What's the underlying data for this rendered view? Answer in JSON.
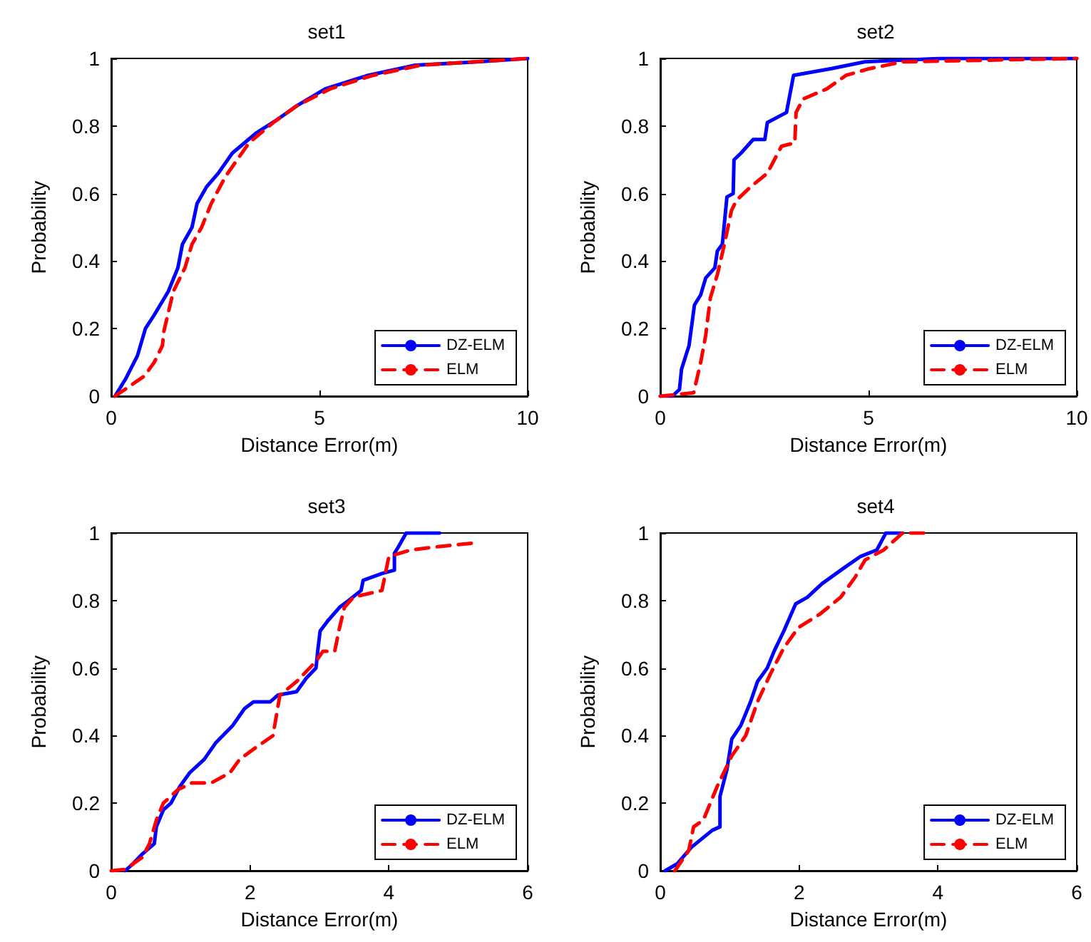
{
  "chart_data": [
    {
      "type": "line",
      "title": "set1",
      "xlabel": "Distance Error(m)",
      "ylabel": "Probability",
      "xlim": [
        0,
        10
      ],
      "xticks": [
        0,
        5,
        10
      ],
      "ylim": [
        0,
        1
      ],
      "yticks": [
        0,
        0.2,
        0.4,
        0.6,
        0.8,
        1
      ],
      "grid": false,
      "legend": "bottom right",
      "series": [
        {
          "name": "DZ-ELM",
          "color": "#0000ff",
          "line_style": "solid",
          "x": [
            0.09,
            0.34,
            0.63,
            0.82,
            1.03,
            1.37,
            1.6,
            1.71,
            1.94,
            2.06,
            2.29,
            2.57,
            2.91,
            3.49,
            4.0,
            4.46,
            5.14,
            6.17,
            7.3,
            8.8,
            10
          ],
          "values": [
            0,
            0.05,
            0.12,
            0.2,
            0.24,
            0.31,
            0.38,
            0.45,
            0.5,
            0.57,
            0.62,
            0.66,
            0.72,
            0.78,
            0.82,
            0.86,
            0.91,
            0.95,
            0.98,
            0.99,
            1
          ]
        },
        {
          "name": "ELM",
          "color": "#ff0000",
          "line_style": "dashed",
          "x": [
            0.09,
            0.8,
            1.03,
            1.23,
            1.26,
            1.49,
            1.77,
            1.94,
            2.17,
            2.4,
            2.74,
            3.31,
            3.89,
            4.46,
            5.26,
            6.29,
            7.43,
            10
          ],
          "values": [
            0,
            0.06,
            0.1,
            0.15,
            0.19,
            0.31,
            0.38,
            0.45,
            0.5,
            0.57,
            0.65,
            0.75,
            0.81,
            0.86,
            0.91,
            0.95,
            0.98,
            1
          ]
        }
      ]
    },
    {
      "type": "line",
      "title": "set2",
      "xlabel": "Distance Error(m)",
      "ylabel": "Probability",
      "xlim": [
        0,
        10
      ],
      "xticks": [
        0,
        5,
        10
      ],
      "ylim": [
        0,
        1
      ],
      "yticks": [
        0,
        0.2,
        0.4,
        0.6,
        0.8,
        1
      ],
      "grid": false,
      "legend": "bottom right",
      "series": [
        {
          "name": "DZ-ELM",
          "color": "#0000ff",
          "line_style": "solid",
          "x": [
            0,
            0.29,
            0.46,
            0.51,
            0.69,
            0.82,
            0.97,
            1.09,
            1.31,
            1.37,
            1.49,
            1.6,
            1.75,
            1.77,
            1.94,
            2.23,
            2.51,
            2.57,
            3.03,
            3.2,
            4.11,
            4.91,
            6.74,
            10
          ],
          "values": [
            0,
            0,
            0.02,
            0.08,
            0.15,
            0.27,
            0.3,
            0.35,
            0.38,
            0.43,
            0.45,
            0.59,
            0.6,
            0.7,
            0.72,
            0.76,
            0.76,
            0.81,
            0.84,
            0.95,
            0.97,
            0.99,
            1,
            1
          ]
        },
        {
          "name": "ELM",
          "color": "#ff0000",
          "line_style": "dashed",
          "x": [
            0,
            0.8,
            0.97,
            1.09,
            1.2,
            1.37,
            1.54,
            1.71,
            1.83,
            2.17,
            2.57,
            2.91,
            3.23,
            3.26,
            3.43,
            4.0,
            4.46,
            5.03,
            5.83,
            10
          ],
          "values": [
            0,
            0.01,
            0.1,
            0.18,
            0.29,
            0.36,
            0.45,
            0.55,
            0.58,
            0.62,
            0.66,
            0.74,
            0.75,
            0.84,
            0.88,
            0.91,
            0.95,
            0.97,
            0.99,
            1
          ]
        }
      ]
    },
    {
      "type": "line",
      "title": "set3",
      "xlabel": "Distance Error(m)",
      "ylabel": "Probability",
      "xlim": [
        0,
        6
      ],
      "xticks": [
        0,
        2,
        4,
        6
      ],
      "ylim": [
        0,
        1
      ],
      "yticks": [
        0,
        0.2,
        0.4,
        0.6,
        0.8,
        1
      ],
      "grid": false,
      "legend": "bottom right",
      "series": [
        {
          "name": "DZ-ELM",
          "color": "#0000ff",
          "line_style": "solid",
          "x": [
            0.2,
            0.31,
            0.45,
            0.62,
            0.65,
            0.75,
            0.86,
            0.99,
            1.13,
            1.34,
            1.51,
            1.75,
            1.92,
            2.05,
            2.29,
            2.4,
            2.67,
            2.81,
            2.95,
            2.98,
            3.01,
            3.12,
            3.29,
            3.42,
            3.6,
            3.63,
            3.9,
            4.08,
            4.08,
            4.14,
            4.25,
            4.73
          ],
          "values": [
            0,
            0.02,
            0.05,
            0.08,
            0.13,
            0.18,
            0.2,
            0.25,
            0.29,
            0.33,
            0.38,
            0.43,
            0.48,
            0.5,
            0.5,
            0.52,
            0.53,
            0.57,
            0.6,
            0.66,
            0.71,
            0.74,
            0.78,
            0.8,
            0.83,
            0.86,
            0.88,
            0.89,
            0.94,
            0.96,
            1,
            1
          ]
        },
        {
          "name": "ELM",
          "color": "#ff0000",
          "line_style": "dashed",
          "x": [
            0,
            0.2,
            0.45,
            0.55,
            0.65,
            0.75,
            0.96,
            1.16,
            1.44,
            1.71,
            1.85,
            2.05,
            2.33,
            2.43,
            2.67,
            2.95,
            3.05,
            3.22,
            3.29,
            3.36,
            3.49,
            3.9,
            4.0,
            4.32,
            4.73,
            5.21
          ],
          "values": [
            0,
            0.004,
            0.04,
            0.08,
            0.15,
            0.2,
            0.24,
            0.26,
            0.26,
            0.29,
            0.33,
            0.36,
            0.4,
            0.52,
            0.56,
            0.62,
            0.65,
            0.65,
            0.72,
            0.78,
            0.81,
            0.83,
            0.93,
            0.95,
            0.96,
            0.97
          ]
        }
      ]
    },
    {
      "type": "line",
      "title": "set4",
      "xlabel": "Distance Error(m)",
      "ylabel": "Probability",
      "xlim": [
        0,
        6
      ],
      "xticks": [
        0,
        2,
        4,
        6
      ],
      "ylim": [
        0,
        1
      ],
      "yticks": [
        0,
        0.2,
        0.4,
        0.6,
        0.8,
        1
      ],
      "grid": false,
      "legend": "bottom right",
      "series": [
        {
          "name": "DZ-ELM",
          "color": "#0000ff",
          "line_style": "solid",
          "x": [
            0.07,
            0.24,
            0.45,
            0.75,
            0.86,
            0.86,
            0.96,
            1.03,
            1.16,
            1.3,
            1.4,
            1.54,
            1.64,
            1.78,
            1.95,
            2.12,
            2.33,
            2.67,
            2.88,
            3.12,
            3.25,
            3.49
          ],
          "values": [
            0,
            0.02,
            0.07,
            0.12,
            0.13,
            0.22,
            0.3,
            0.39,
            0.43,
            0.5,
            0.56,
            0.6,
            0.65,
            0.71,
            0.79,
            0.81,
            0.85,
            0.9,
            0.93,
            0.95,
            1,
            1
          ]
        },
        {
          "name": "ELM",
          "color": "#ff0000",
          "line_style": "dashed",
          "x": [
            0.21,
            0.31,
            0.41,
            0.48,
            0.62,
            0.82,
            1.03,
            1.23,
            1.4,
            1.58,
            1.78,
            1.99,
            2.3,
            2.6,
            2.81,
            2.95,
            3.22,
            3.49,
            3.9
          ],
          "values": [
            0,
            0.03,
            0.06,
            0.13,
            0.15,
            0.25,
            0.34,
            0.4,
            0.5,
            0.58,
            0.66,
            0.72,
            0.76,
            0.81,
            0.87,
            0.92,
            0.95,
            1,
            1
          ]
        }
      ]
    }
  ]
}
